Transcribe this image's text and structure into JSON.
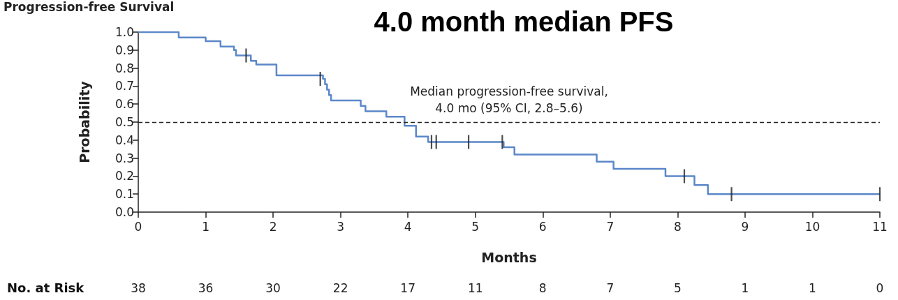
{
  "chart_data": {
    "type": "step",
    "title": "Progression-free Survival",
    "subtitle": "4.0 month median PFS",
    "xlabel": "Months",
    "ylabel": "Probability",
    "series": [
      {
        "color": "#5b87c9",
        "x": [
          0,
          0.6,
          1.0,
          1.22,
          1.42,
          1.45,
          1.67,
          1.75,
          2.05,
          2.74,
          2.77,
          2.8,
          2.83,
          2.86,
          3.3,
          3.37,
          3.68,
          3.95,
          4.12,
          4.3,
          5.42,
          5.58,
          6.8,
          7.05,
          7.82,
          8.25,
          8.45,
          11
        ],
        "values": [
          1.0,
          0.97,
          0.95,
          0.92,
          0.9,
          0.87,
          0.84,
          0.82,
          0.76,
          0.74,
          0.71,
          0.68,
          0.65,
          0.62,
          0.59,
          0.56,
          0.53,
          0.48,
          0.42,
          0.39,
          0.36,
          0.32,
          0.28,
          0.24,
          0.2,
          0.15,
          0.1,
          0.1
        ]
      },
      {
        "type": "scatter",
        "color": "#222222",
        "x": [
          1.6,
          2.7,
          4.35,
          4.42,
          4.9,
          5.4,
          8.1,
          8.8,
          11
        ],
        "values": [
          0.87,
          0.74,
          0.39,
          0.39,
          0.39,
          0.39,
          0.2,
          0.1,
          0.1
        ]
      }
    ],
    "xlim": [
      0,
      11
    ],
    "xticks": [
      0,
      1,
      2,
      3,
      4,
      5,
      6,
      7,
      8,
      9,
      10,
      11
    ],
    "ylim": [
      0,
      1
    ],
    "yticks": [
      {
        "value": 0,
        "label": "0.0"
      },
      0.1,
      0.2,
      0.3,
      0.4,
      0.5,
      0.6,
      0.7,
      0.8,
      0.9,
      {
        "value": 1,
        "label": "1.0"
      }
    ],
    "ref_lines": [
      {
        "axis": "y",
        "value": 0.5,
        "label": "Median progression-free survival,\n4.0 mo (95% CI, 2.8–5.6)",
        "color": "#222222",
        "line_style": "dashed"
      }
    ],
    "annotations": [
      "No. at Risk",
      "38",
      "36",
      "30",
      "22",
      "17",
      "11",
      "8",
      "7",
      "5",
      "1",
      "1",
      "0"
    ],
    "grid": false
  }
}
